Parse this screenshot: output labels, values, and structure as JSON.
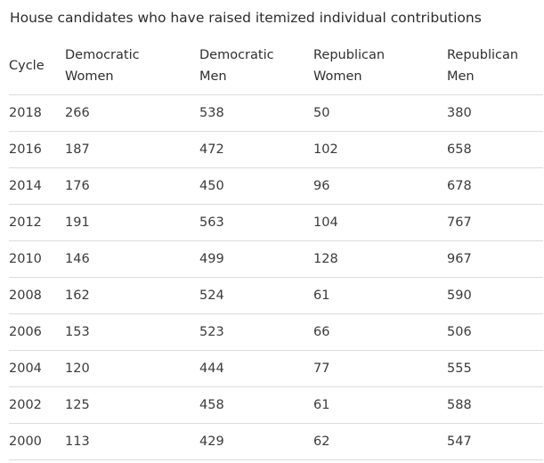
{
  "title": "House candidates who have raised itemized individual contributions",
  "table": {
    "headers": [
      [
        "Cycle"
      ],
      [
        "Democratic",
        "Women"
      ],
      [
        "Democratic",
        "Men"
      ],
      [
        "Republican",
        "Women"
      ],
      [
        "Republican",
        "Men"
      ]
    ],
    "rows": [
      [
        "2018",
        "266",
        "538",
        "50",
        "380"
      ],
      [
        "2016",
        "187",
        "472",
        "102",
        "658"
      ],
      [
        "2014",
        "176",
        "450",
        "96",
        "678"
      ],
      [
        "2012",
        "191",
        "563",
        "104",
        "767"
      ],
      [
        "2010",
        "146",
        "499",
        "128",
        "967"
      ],
      [
        "2008",
        "162",
        "524",
        "61",
        "590"
      ],
      [
        "2006",
        "153",
        "523",
        "66",
        "506"
      ],
      [
        "2004",
        "120",
        "444",
        "77",
        "555"
      ],
      [
        "2002",
        "125",
        "458",
        "61",
        "588"
      ],
      [
        "2000",
        "113",
        "429",
        "62",
        "547"
      ]
    ]
  }
}
